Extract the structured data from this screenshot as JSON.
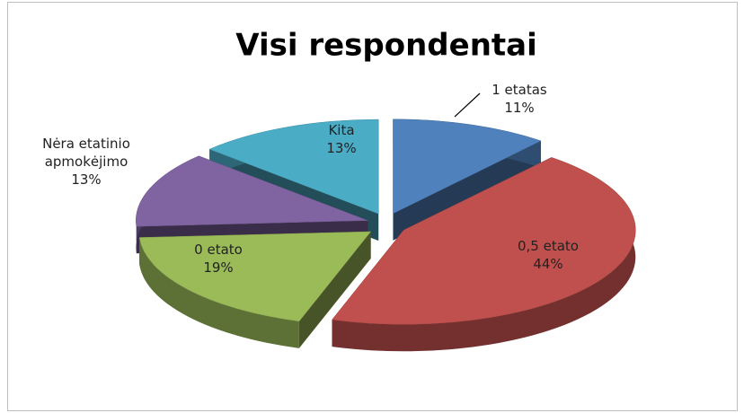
{
  "chart_data": {
    "type": "pie",
    "title": "Visi respondentai",
    "categories": [
      "1 etatas",
      "0,5 etato",
      "0 etato",
      "Nėra etatinio apmokėjimo",
      "Kita"
    ],
    "values": [
      11,
      44,
      19,
      13,
      13
    ],
    "value_labels": [
      "11%",
      "44%",
      "19%",
      "13%",
      "13%"
    ],
    "colors": [
      "#4f81bd",
      "#c0504d",
      "#9bbb59",
      "#8064a2",
      "#4bacc6"
    ]
  }
}
